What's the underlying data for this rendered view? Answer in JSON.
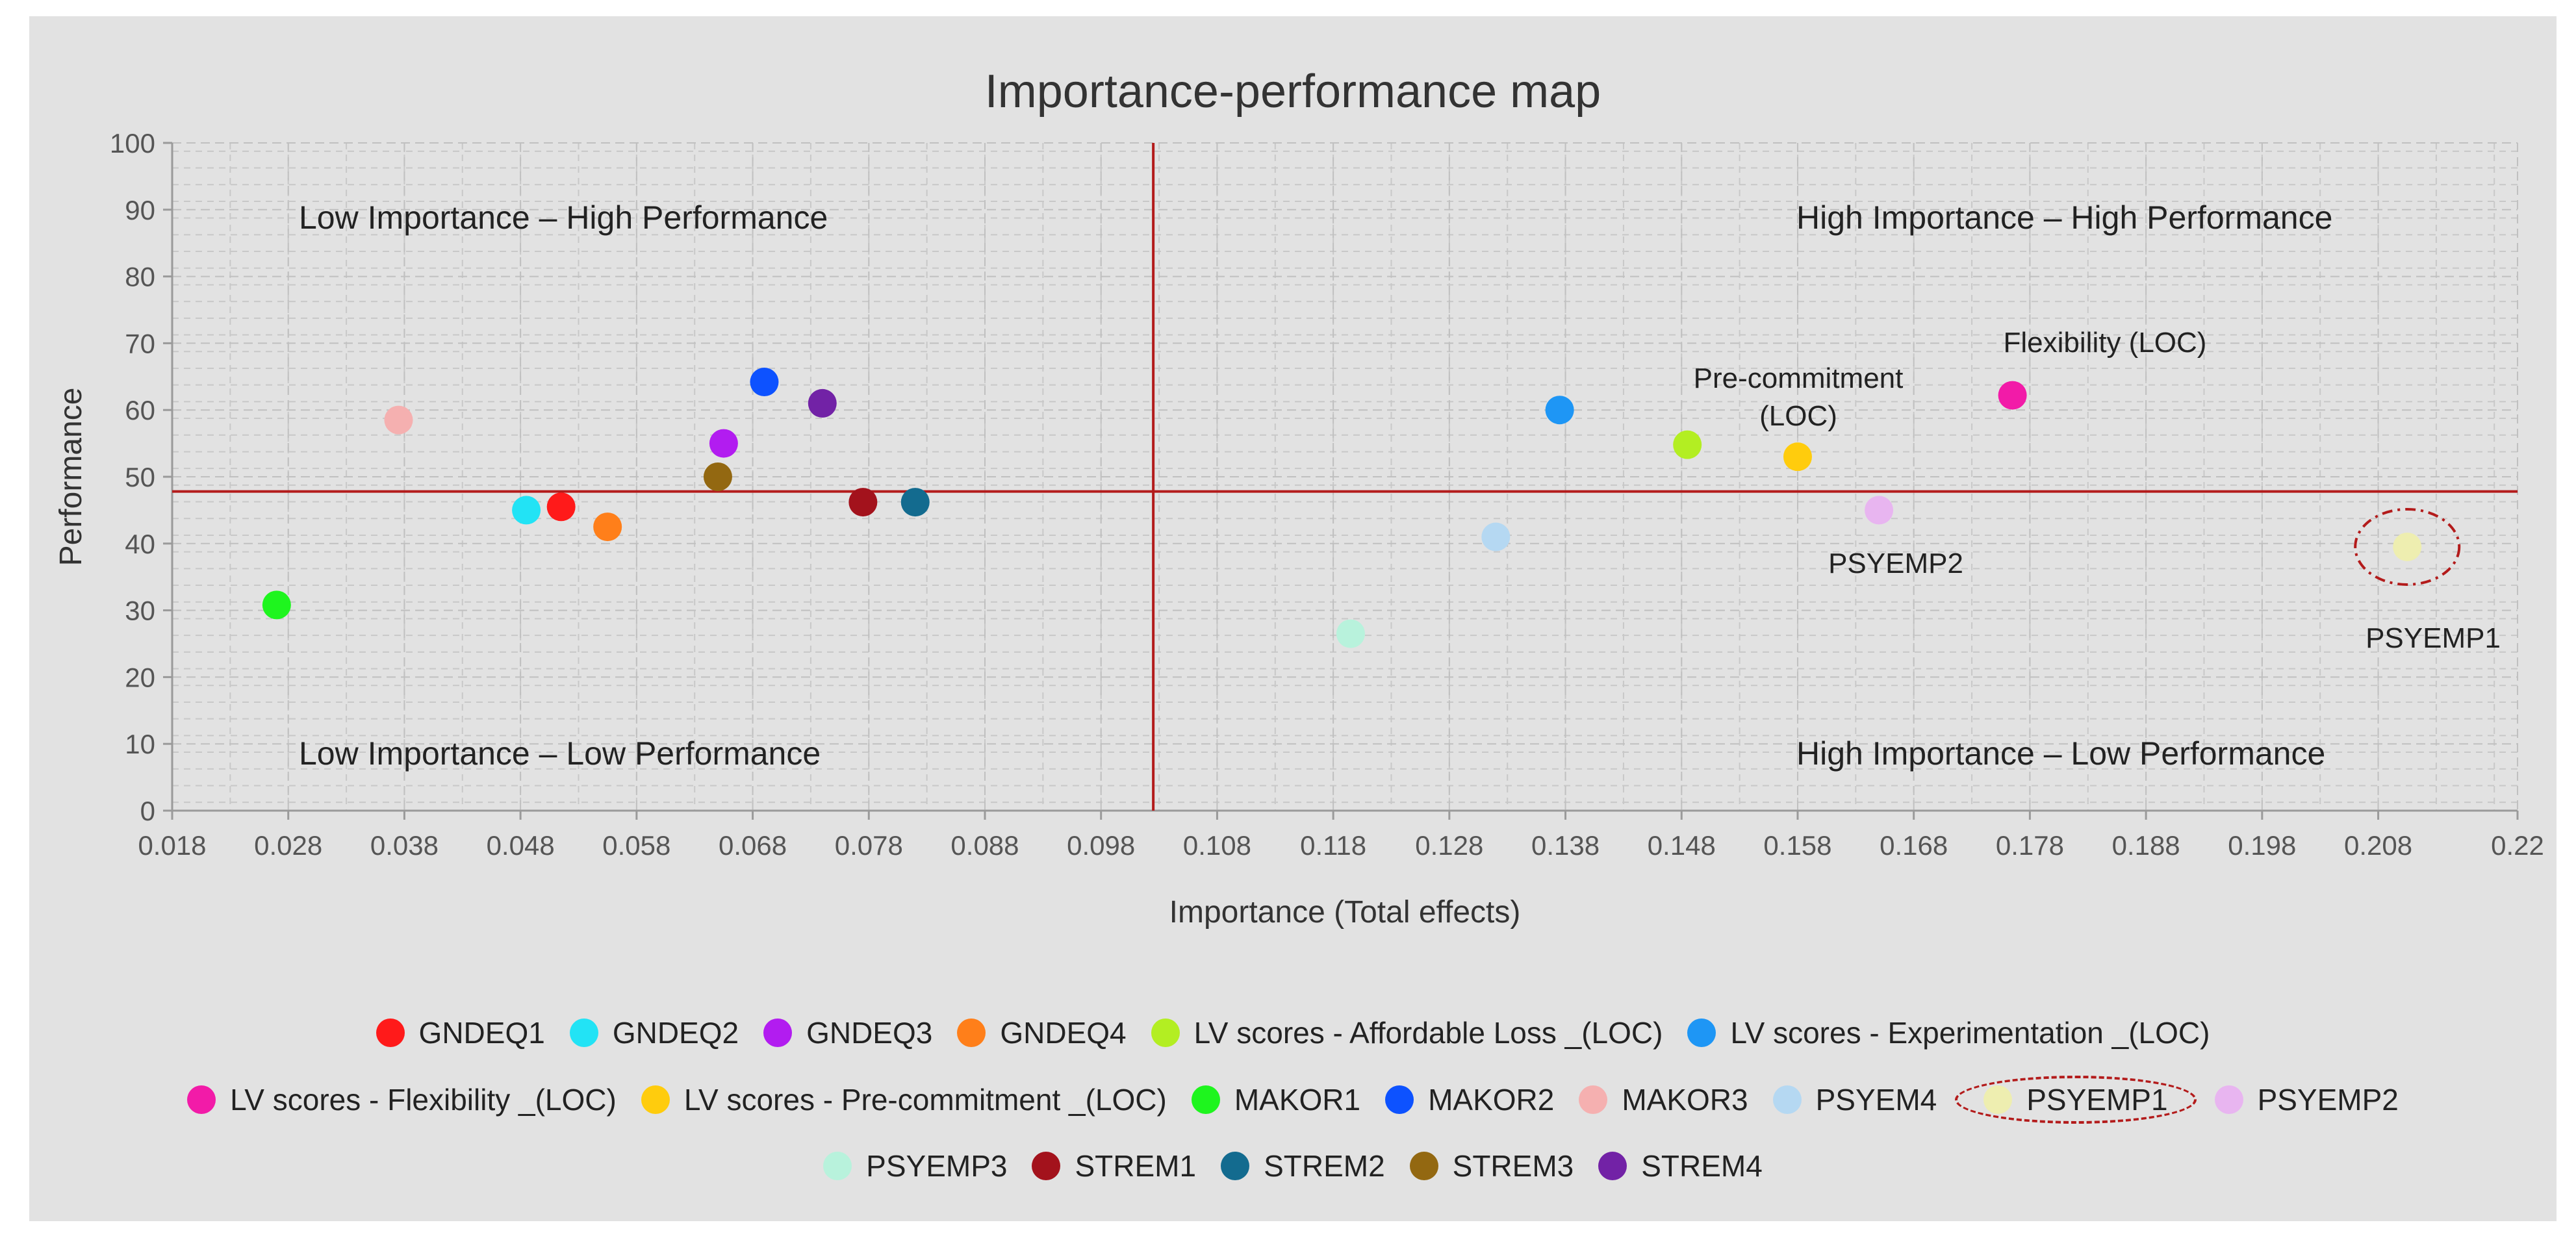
{
  "chart_data": {
    "type": "scatter",
    "title": "Importance-performance map",
    "xlabel": "Importance (Total effects)",
    "ylabel": "Performance",
    "xlim": [
      0.018,
      0.22
    ],
    "ylim": [
      0,
      100
    ],
    "x_ticks": [
      "0.018",
      "0.028",
      "0.038",
      "0.048",
      "0.058",
      "0.068",
      "0.078",
      "0.088",
      "0.098",
      "0.108",
      "0.118",
      "0.128",
      "0.138",
      "0.148",
      "0.158",
      "0.168",
      "0.178",
      "0.188",
      "0.198",
      "0.208",
      "0.22"
    ],
    "y_ticks": [
      "0",
      "10",
      "20",
      "30",
      "40",
      "50",
      "60",
      "70",
      "80",
      "90",
      "100"
    ],
    "reference_lines": {
      "x": 0.1025,
      "y": 47.8
    },
    "quadrant_labels": {
      "top_left": "Low Importance – High Performance",
      "top_right": "High Importance – High Performance",
      "bottom_left": "Low Importance – Low Performance",
      "bottom_right": "High Importance – Low Performance"
    },
    "point_labels": {
      "flexibility": "Flexibility (LOC)",
      "precommitment_1": "Pre-commitment",
      "precommitment_2": "(LOC)",
      "psyemp2": "PSYEMP2",
      "psyemp1": "PSYEMP1"
    },
    "series": [
      {
        "name": "GNDEQ1",
        "x": 0.0515,
        "y": 45.5,
        "color": "#ff1a1a"
      },
      {
        "name": "GNDEQ2",
        "x": 0.0485,
        "y": 45.0,
        "color": "#22e3f5"
      },
      {
        "name": "GNDEQ3",
        "x": 0.0655,
        "y": 55.0,
        "color": "#b21cf0"
      },
      {
        "name": "GNDEQ4",
        "x": 0.0555,
        "y": 42.5,
        "color": "#ff7f1a"
      },
      {
        "name": "LV scores - Affordable Loss _(LOC)",
        "x": 0.1485,
        "y": 54.8,
        "color": "#b3ee22"
      },
      {
        "name": "LV scores - Experimentation _(LOC)",
        "x": 0.1375,
        "y": 60.0,
        "color": "#1e96f5"
      },
      {
        "name": "LV scores - Flexibility _(LOC)",
        "x": 0.1765,
        "y": 62.2,
        "color": "#f21ba8"
      },
      {
        "name": "LV scores - Pre-commitment _(LOC)",
        "x": 0.158,
        "y": 53.0,
        "color": "#ffcc0d"
      },
      {
        "name": "MAKOR1",
        "x": 0.027,
        "y": 30.8,
        "color": "#1ef51e"
      },
      {
        "name": "MAKOR2",
        "x": 0.069,
        "y": 64.2,
        "color": "#0d52ff"
      },
      {
        "name": "MAKOR3",
        "x": 0.0375,
        "y": 58.5,
        "color": "#f5b0b0"
      },
      {
        "name": "PSYEM4",
        "x": 0.132,
        "y": 41.0,
        "color": "#b5d8f2"
      },
      {
        "name": "PSYEMP1",
        "x": 0.2105,
        "y": 39.5,
        "color": "#eeeeb0"
      },
      {
        "name": "PSYEMP2",
        "x": 0.165,
        "y": 45.0,
        "color": "#e8b5f0"
      },
      {
        "name": "PSYEMP3",
        "x": 0.1195,
        "y": 26.5,
        "color": "#b8f2dc"
      },
      {
        "name": "STREM1",
        "x": 0.0775,
        "y": 46.2,
        "color": "#a3121c"
      },
      {
        "name": "STREM2",
        "x": 0.082,
        "y": 46.2,
        "color": "#136b8f"
      },
      {
        "name": "STREM3",
        "x": 0.065,
        "y": 50.0,
        "color": "#936811"
      },
      {
        "name": "STREM4",
        "x": 0.074,
        "y": 61.0,
        "color": "#7222a6"
      }
    ],
    "legend_rows": [
      [
        "GNDEQ1",
        "GNDEQ2",
        "GNDEQ3",
        "GNDEQ4",
        "LV scores - Affordable Loss _(LOC)",
        "LV scores - Experimentation _(LOC)"
      ],
      [
        "LV scores - Flexibility _(LOC)",
        "LV scores - Pre-commitment _(LOC)",
        "MAKOR1",
        "MAKOR2",
        "MAKOR3",
        "PSYEM4",
        "PSYEMP1",
        "PSYEMP2"
      ],
      [
        "PSYEMP3",
        "STREM1",
        "STREM2",
        "STREM3",
        "STREM4"
      ]
    ],
    "highlighted": "PSYEMP1",
    "colors": {
      "reference_line": "#b31b1b",
      "grid": "#c8c8c8",
      "axis": "#9a9a9a",
      "panel": "#e2e2e2",
      "highlight": "#b31b1b"
    }
  }
}
